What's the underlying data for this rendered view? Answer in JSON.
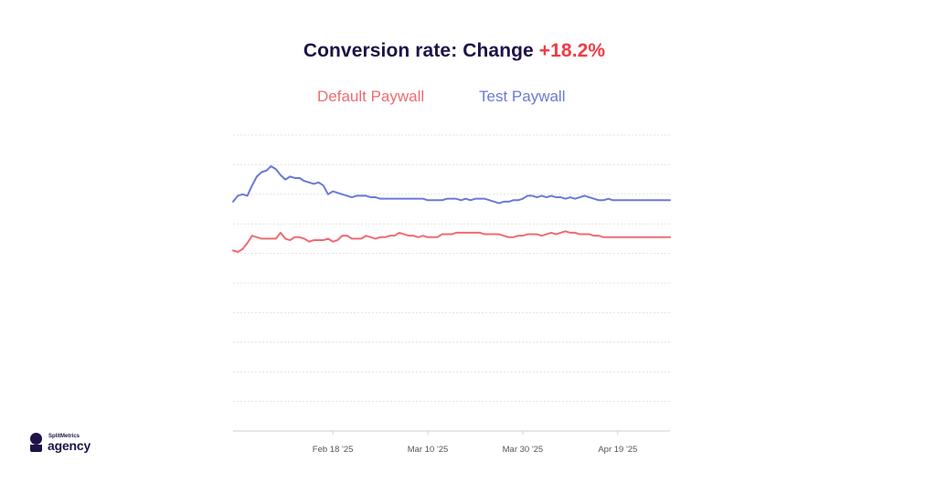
{
  "title": {
    "prefix": "Conversion rate: Change ",
    "change": "+18.2%"
  },
  "colors": {
    "title": "#1f1248",
    "change": "#f23b45",
    "default_series": "#ef6b73",
    "test_series": "#6a79d6",
    "grid": "#dcdcdc"
  },
  "logo": {
    "small_text": "SplitMetrics",
    "big_text": "agency"
  },
  "chart_data": {
    "type": "line",
    "title": "Conversion rate: Change +18.2%",
    "xlabel": "",
    "ylabel": "",
    "grid": true,
    "legend_position": "top",
    "x_ticks": [
      "Feb 18 '25",
      "Mar 10 '25",
      "Mar 30 '25",
      "Apr 19 '25"
    ],
    "x_range": [
      "2025-01-28",
      "2025-04-30"
    ],
    "series": [
      {
        "name": "Default Paywall",
        "color": "#ef6b73",
        "points": [
          [
            "2025-01-28",
            6.1
          ],
          [
            "2025-01-29",
            6.05
          ],
          [
            "2025-01-30",
            6.15
          ],
          [
            "2025-01-31",
            6.35
          ],
          [
            "2025-02-01",
            6.6
          ],
          [
            "2025-02-02",
            6.55
          ],
          [
            "2025-02-03",
            6.5
          ],
          [
            "2025-02-04",
            6.5
          ],
          [
            "2025-02-05",
            6.5
          ],
          [
            "2025-02-06",
            6.5
          ],
          [
            "2025-02-07",
            6.7
          ],
          [
            "2025-02-08",
            6.5
          ],
          [
            "2025-02-09",
            6.45
          ],
          [
            "2025-02-10",
            6.55
          ],
          [
            "2025-02-11",
            6.55
          ],
          [
            "2025-02-12",
            6.5
          ],
          [
            "2025-02-13",
            6.4
          ],
          [
            "2025-02-14",
            6.45
          ],
          [
            "2025-02-15",
            6.45
          ],
          [
            "2025-02-16",
            6.45
          ],
          [
            "2025-02-17",
            6.5
          ],
          [
            "2025-02-18",
            6.4
          ],
          [
            "2025-02-19",
            6.45
          ],
          [
            "2025-02-20",
            6.6
          ],
          [
            "2025-02-21",
            6.6
          ],
          [
            "2025-02-22",
            6.5
          ],
          [
            "2025-02-23",
            6.5
          ],
          [
            "2025-02-24",
            6.5
          ],
          [
            "2025-02-25",
            6.6
          ],
          [
            "2025-02-26",
            6.55
          ],
          [
            "2025-02-27",
            6.5
          ],
          [
            "2025-02-28",
            6.55
          ],
          [
            "2025-03-01",
            6.55
          ],
          [
            "2025-03-02",
            6.6
          ],
          [
            "2025-03-03",
            6.6
          ],
          [
            "2025-03-04",
            6.7
          ],
          [
            "2025-03-05",
            6.65
          ],
          [
            "2025-03-06",
            6.6
          ],
          [
            "2025-03-07",
            6.6
          ],
          [
            "2025-03-08",
            6.55
          ],
          [
            "2025-03-09",
            6.6
          ],
          [
            "2025-03-10",
            6.55
          ],
          [
            "2025-03-11",
            6.55
          ],
          [
            "2025-03-12",
            6.55
          ],
          [
            "2025-03-13",
            6.65
          ],
          [
            "2025-03-14",
            6.65
          ],
          [
            "2025-03-15",
            6.65
          ],
          [
            "2025-03-16",
            6.7
          ],
          [
            "2025-03-17",
            6.7
          ],
          [
            "2025-03-18",
            6.7
          ],
          [
            "2025-03-19",
            6.7
          ],
          [
            "2025-03-20",
            6.7
          ],
          [
            "2025-03-21",
            6.7
          ],
          [
            "2025-03-22",
            6.65
          ],
          [
            "2025-03-23",
            6.65
          ],
          [
            "2025-03-24",
            6.65
          ],
          [
            "2025-03-25",
            6.65
          ],
          [
            "2025-03-26",
            6.6
          ],
          [
            "2025-03-27",
            6.55
          ],
          [
            "2025-03-28",
            6.55
          ],
          [
            "2025-03-29",
            6.6
          ],
          [
            "2025-03-30",
            6.6
          ],
          [
            "2025-03-31",
            6.65
          ],
          [
            "2025-04-01",
            6.65
          ],
          [
            "2025-04-02",
            6.65
          ],
          [
            "2025-04-03",
            6.6
          ],
          [
            "2025-04-04",
            6.65
          ],
          [
            "2025-04-05",
            6.7
          ],
          [
            "2025-04-06",
            6.65
          ],
          [
            "2025-04-07",
            6.7
          ],
          [
            "2025-04-08",
            6.75
          ],
          [
            "2025-04-09",
            6.7
          ],
          [
            "2025-04-10",
            6.7
          ],
          [
            "2025-04-11",
            6.65
          ],
          [
            "2025-04-12",
            6.65
          ],
          [
            "2025-04-13",
            6.65
          ],
          [
            "2025-04-14",
            6.6
          ],
          [
            "2025-04-15",
            6.6
          ],
          [
            "2025-04-16",
            6.55
          ],
          [
            "2025-04-17",
            6.55
          ],
          [
            "2025-04-18",
            6.55
          ],
          [
            "2025-04-19",
            6.55
          ],
          [
            "2025-04-20",
            6.55
          ],
          [
            "2025-04-21",
            6.55
          ],
          [
            "2025-04-22",
            6.55
          ],
          [
            "2025-04-23",
            6.55
          ],
          [
            "2025-04-24",
            6.55
          ],
          [
            "2025-04-25",
            6.55
          ],
          [
            "2025-04-26",
            6.55
          ],
          [
            "2025-04-27",
            6.55
          ],
          [
            "2025-04-28",
            6.55
          ],
          [
            "2025-04-29",
            6.55
          ],
          [
            "2025-04-30",
            6.55
          ]
        ]
      },
      {
        "name": "Test Paywall",
        "color": "#6a79d6",
        "points": [
          [
            "2025-01-28",
            7.75
          ],
          [
            "2025-01-29",
            7.95
          ],
          [
            "2025-01-30",
            8.0
          ],
          [
            "2025-01-31",
            7.95
          ],
          [
            "2025-02-01",
            8.3
          ],
          [
            "2025-02-02",
            8.6
          ],
          [
            "2025-02-03",
            8.75
          ],
          [
            "2025-02-04",
            8.8
          ],
          [
            "2025-02-05",
            8.95
          ],
          [
            "2025-02-06",
            8.85
          ],
          [
            "2025-02-07",
            8.65
          ],
          [
            "2025-02-08",
            8.5
          ],
          [
            "2025-02-09",
            8.6
          ],
          [
            "2025-02-10",
            8.55
          ],
          [
            "2025-02-11",
            8.55
          ],
          [
            "2025-02-12",
            8.45
          ],
          [
            "2025-02-13",
            8.4
          ],
          [
            "2025-02-14",
            8.35
          ],
          [
            "2025-02-15",
            8.4
          ],
          [
            "2025-02-16",
            8.3
          ],
          [
            "2025-02-17",
            8.0
          ],
          [
            "2025-02-18",
            8.1
          ],
          [
            "2025-02-19",
            8.05
          ],
          [
            "2025-02-20",
            8.0
          ],
          [
            "2025-02-21",
            7.95
          ],
          [
            "2025-02-22",
            7.9
          ],
          [
            "2025-02-23",
            7.95
          ],
          [
            "2025-02-24",
            7.95
          ],
          [
            "2025-02-25",
            7.95
          ],
          [
            "2025-02-26",
            7.9
          ],
          [
            "2025-02-27",
            7.9
          ],
          [
            "2025-02-28",
            7.85
          ],
          [
            "2025-03-01",
            7.85
          ],
          [
            "2025-03-02",
            7.85
          ],
          [
            "2025-03-03",
            7.85
          ],
          [
            "2025-03-04",
            7.85
          ],
          [
            "2025-03-05",
            7.85
          ],
          [
            "2025-03-06",
            7.85
          ],
          [
            "2025-03-07",
            7.85
          ],
          [
            "2025-03-08",
            7.85
          ],
          [
            "2025-03-09",
            7.85
          ],
          [
            "2025-03-10",
            7.8
          ],
          [
            "2025-03-11",
            7.8
          ],
          [
            "2025-03-12",
            7.8
          ],
          [
            "2025-03-13",
            7.8
          ],
          [
            "2025-03-14",
            7.85
          ],
          [
            "2025-03-15",
            7.85
          ],
          [
            "2025-03-16",
            7.85
          ],
          [
            "2025-03-17",
            7.8
          ],
          [
            "2025-03-18",
            7.85
          ],
          [
            "2025-03-19",
            7.8
          ],
          [
            "2025-03-20",
            7.85
          ],
          [
            "2025-03-21",
            7.85
          ],
          [
            "2025-03-22",
            7.85
          ],
          [
            "2025-03-23",
            7.8
          ],
          [
            "2025-03-24",
            7.75
          ],
          [
            "2025-03-25",
            7.7
          ],
          [
            "2025-03-26",
            7.75
          ],
          [
            "2025-03-27",
            7.75
          ],
          [
            "2025-03-28",
            7.8
          ],
          [
            "2025-03-29",
            7.8
          ],
          [
            "2025-03-30",
            7.85
          ],
          [
            "2025-03-31",
            7.95
          ],
          [
            "2025-04-01",
            7.95
          ],
          [
            "2025-04-02",
            7.9
          ],
          [
            "2025-04-03",
            7.95
          ],
          [
            "2025-04-04",
            7.9
          ],
          [
            "2025-04-05",
            7.95
          ],
          [
            "2025-04-06",
            7.9
          ],
          [
            "2025-04-07",
            7.9
          ],
          [
            "2025-04-08",
            7.85
          ],
          [
            "2025-04-09",
            7.9
          ],
          [
            "2025-04-10",
            7.85
          ],
          [
            "2025-04-11",
            7.9
          ],
          [
            "2025-04-12",
            7.95
          ],
          [
            "2025-04-13",
            7.9
          ],
          [
            "2025-04-14",
            7.85
          ],
          [
            "2025-04-15",
            7.8
          ],
          [
            "2025-04-16",
            7.8
          ],
          [
            "2025-04-17",
            7.85
          ],
          [
            "2025-04-18",
            7.8
          ],
          [
            "2025-04-19",
            7.8
          ],
          [
            "2025-04-20",
            7.8
          ],
          [
            "2025-04-21",
            7.8
          ],
          [
            "2025-04-22",
            7.8
          ],
          [
            "2025-04-23",
            7.8
          ],
          [
            "2025-04-24",
            7.8
          ],
          [
            "2025-04-25",
            7.8
          ],
          [
            "2025-04-26",
            7.8
          ],
          [
            "2025-04-27",
            7.8
          ],
          [
            "2025-04-28",
            7.8
          ],
          [
            "2025-04-29",
            7.8
          ],
          [
            "2025-04-30",
            7.8
          ]
        ]
      }
    ],
    "ylim": [
      0,
      10
    ],
    "y_gridlines": [
      0,
      1,
      2,
      3,
      4,
      5,
      6,
      7,
      8,
      9,
      10
    ]
  }
}
